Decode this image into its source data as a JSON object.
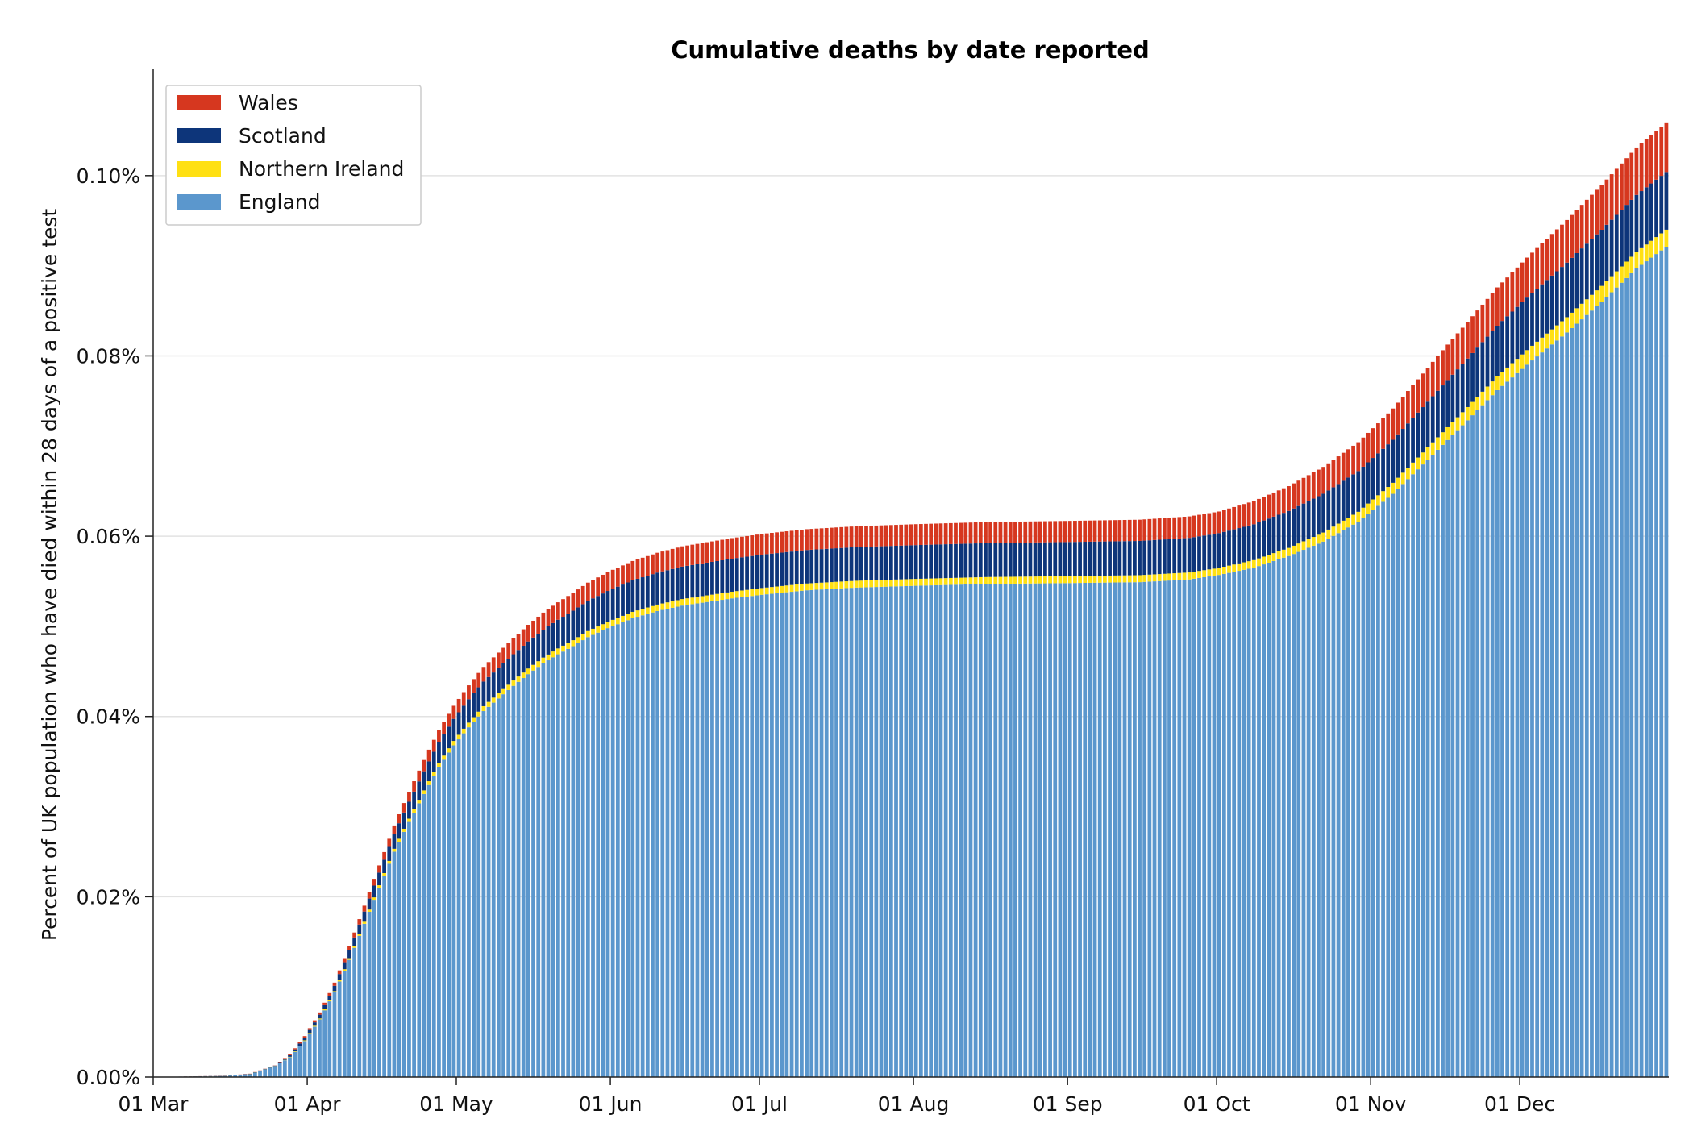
{
  "chart_data": {
    "type": "bar",
    "stacked": true,
    "title": "Cumulative deaths by date reported",
    "xlabel": "",
    "ylabel": "Percent of UK population who have died within 28 days of a positive test",
    "x_start": "2020-03-01",
    "x_end": "2020-12-30",
    "x_ticks": [
      "01 Mar",
      "01 Apr",
      "01 May",
      "01 Jun",
      "01 Jul",
      "01 Aug",
      "01 Sep",
      "01 Oct",
      "01 Nov",
      "01 Dec"
    ],
    "x_tick_dates": [
      "2020-03-01",
      "2020-04-01",
      "2020-05-01",
      "2020-06-01",
      "2020-07-01",
      "2020-08-01",
      "2020-09-01",
      "2020-10-01",
      "2020-11-01",
      "2020-12-01"
    ],
    "y_ticks": [
      "0.00%",
      "0.02%",
      "0.04%",
      "0.06%",
      "0.08%",
      "0.10%"
    ],
    "y_tick_values": [
      0,
      0.02,
      0.04,
      0.06,
      0.08,
      0.1
    ],
    "ylim": [
      0,
      0.11
    ],
    "grid": "horizontal",
    "legend_position": "top-left",
    "value_unit": "percent of UK population",
    "stack_order": [
      "England",
      "Northern Ireland",
      "Scotland",
      "Wales"
    ],
    "legend_order": [
      "Wales",
      "Scotland",
      "Northern Ireland",
      "England"
    ],
    "colors": {
      "England": "#5b97cd",
      "Northern Ireland": "#ffe013",
      "Scotland": "#0d357a",
      "Wales": "#d6371f"
    },
    "series": [
      {
        "name": "England",
        "points": [
          [
            "2020-03-01",
            0
          ],
          [
            "2020-03-15",
            0.0001
          ],
          [
            "2020-03-20",
            0.0003
          ],
          [
            "2020-03-25",
            0.0012
          ],
          [
            "2020-03-28",
            0.0022
          ],
          [
            "2020-03-31",
            0.004
          ],
          [
            "2020-04-03",
            0.0064
          ],
          [
            "2020-04-06",
            0.0094
          ],
          [
            "2020-04-09",
            0.013
          ],
          [
            "2020-04-12",
            0.017
          ],
          [
            "2020-04-15",
            0.021
          ],
          [
            "2020-04-18",
            0.025
          ],
          [
            "2020-04-21",
            0.0283
          ],
          [
            "2020-04-24",
            0.0314
          ],
          [
            "2020-04-27",
            0.0344
          ],
          [
            "2020-04-30",
            0.0368
          ],
          [
            "2020-05-03",
            0.0388
          ],
          [
            "2020-05-06",
            0.0406
          ],
          [
            "2020-05-09",
            0.042
          ],
          [
            "2020-05-12",
            0.0434
          ],
          [
            "2020-05-15",
            0.0447
          ],
          [
            "2020-05-18",
            0.0459
          ],
          [
            "2020-05-21",
            0.0469
          ],
          [
            "2020-05-24",
            0.0478
          ],
          [
            "2020-05-27",
            0.0488
          ],
          [
            "2020-05-31",
            0.0498
          ],
          [
            "2020-06-05",
            0.0509
          ],
          [
            "2020-06-10",
            0.0517
          ],
          [
            "2020-06-15",
            0.0523
          ],
          [
            "2020-06-20",
            0.0527
          ],
          [
            "2020-06-25",
            0.0531
          ],
          [
            "2020-07-01",
            0.0535
          ],
          [
            "2020-07-10",
            0.054
          ],
          [
            "2020-07-20",
            0.0543
          ],
          [
            "2020-08-01",
            0.0545
          ],
          [
            "2020-08-15",
            0.0547
          ],
          [
            "2020-09-01",
            0.0548
          ],
          [
            "2020-09-15",
            0.0549
          ],
          [
            "2020-09-25",
            0.0552
          ],
          [
            "2020-10-01",
            0.0557
          ],
          [
            "2020-10-08",
            0.0565
          ],
          [
            "2020-10-15",
            0.0578
          ],
          [
            "2020-10-22",
            0.0594
          ],
          [
            "2020-10-29",
            0.0616
          ],
          [
            "2020-11-05",
            0.0647
          ],
          [
            "2020-11-12",
            0.0685
          ],
          [
            "2020-11-19",
            0.0723
          ],
          [
            "2020-11-26",
            0.0762
          ],
          [
            "2020-12-03",
            0.0795
          ],
          [
            "2020-12-10",
            0.0826
          ],
          [
            "2020-12-17",
            0.086
          ],
          [
            "2020-12-24",
            0.0897
          ],
          [
            "2020-12-30",
            0.0921
          ]
        ]
      },
      {
        "name": "Northern Ireland",
        "points": [
          [
            "2020-03-01",
            0
          ],
          [
            "2020-03-25",
            2e-05
          ],
          [
            "2020-04-05",
            0.00012
          ],
          [
            "2020-04-15",
            0.00028
          ],
          [
            "2020-05-01",
            0.0005
          ],
          [
            "2020-05-15",
            0.00062
          ],
          [
            "2020-06-01",
            0.0007
          ],
          [
            "2020-07-01",
            0.00075
          ],
          [
            "2020-09-30",
            0.00078
          ],
          [
            "2020-10-15",
            0.0009
          ],
          [
            "2020-11-01",
            0.00115
          ],
          [
            "2020-11-15",
            0.0014
          ],
          [
            "2020-12-01",
            0.0016
          ],
          [
            "2020-12-30",
            0.0019
          ]
        ]
      },
      {
        "name": "Scotland",
        "points": [
          [
            "2020-03-01",
            0
          ],
          [
            "2020-03-25",
            5e-05
          ],
          [
            "2020-04-05",
            0.0005
          ],
          [
            "2020-04-15",
            0.0014
          ],
          [
            "2020-04-25",
            0.0022
          ],
          [
            "2020-05-05",
            0.0027
          ],
          [
            "2020-05-15",
            0.003
          ],
          [
            "2020-05-25",
            0.0033
          ],
          [
            "2020-06-01",
            0.00345
          ],
          [
            "2020-06-15",
            0.0036
          ],
          [
            "2020-07-01",
            0.0037
          ],
          [
            "2020-08-01",
            0.00375
          ],
          [
            "2020-09-15",
            0.0038
          ],
          [
            "2020-10-01",
            0.00385
          ],
          [
            "2020-10-15",
            0.0041
          ],
          [
            "2020-11-01",
            0.0046
          ],
          [
            "2020-11-15",
            0.0052
          ],
          [
            "2020-12-01",
            0.0058
          ],
          [
            "2020-12-15",
            0.0062
          ],
          [
            "2020-12-30",
            0.0064
          ]
        ]
      },
      {
        "name": "Wales",
        "points": [
          [
            "2020-03-01",
            0
          ],
          [
            "2020-03-25",
            2e-05
          ],
          [
            "2020-04-05",
            0.0003
          ],
          [
            "2020-04-15",
            0.0008
          ],
          [
            "2020-04-25",
            0.0013
          ],
          [
            "2020-05-05",
            0.0016
          ],
          [
            "2020-05-15",
            0.00185
          ],
          [
            "2020-06-01",
            0.0021
          ],
          [
            "2020-06-15",
            0.00225
          ],
          [
            "2020-07-01",
            0.0023
          ],
          [
            "2020-09-15",
            0.00235
          ],
          [
            "2020-10-01",
            0.0024
          ],
          [
            "2020-10-15",
            0.00275
          ],
          [
            "2020-11-01",
            0.0033
          ],
          [
            "2020-11-15",
            0.0039
          ],
          [
            "2020-12-01",
            0.0044
          ],
          [
            "2020-12-15",
            0.0049
          ],
          [
            "2020-12-30",
            0.0055
          ]
        ]
      }
    ]
  }
}
